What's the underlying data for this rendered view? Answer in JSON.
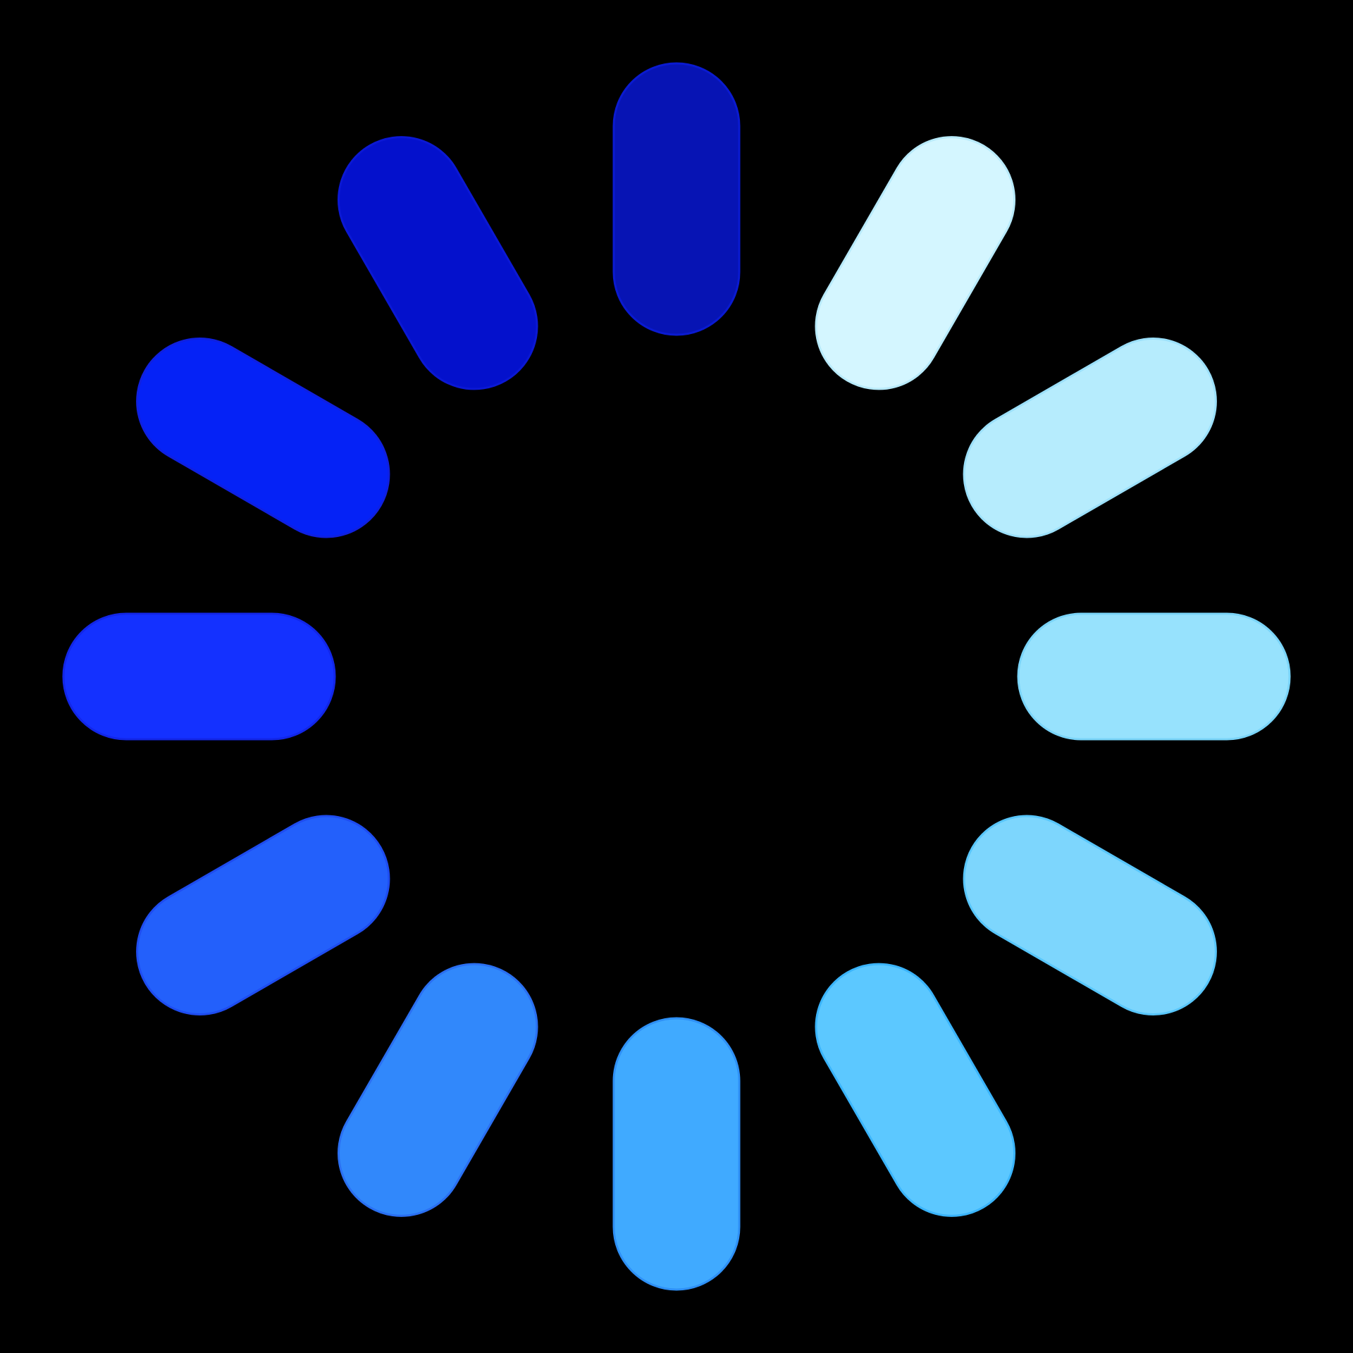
{
  "spinner": {
    "icon": "loading-spinner-icon",
    "background": "#000000",
    "spokes": [
      {
        "angle": 0,
        "fill_from": "#0714b4",
        "fill_to": "#050a9e",
        "stroke": "#0a1ad0"
      },
      {
        "angle": 30,
        "fill_from": "#d4f6ff",
        "fill_to": "#c4f0fb",
        "stroke": "#b8eafa"
      },
      {
        "angle": 60,
        "fill_from": "#b6ecfd",
        "fill_to": "#a6e6fb",
        "stroke": "#9ce0fa"
      },
      {
        "angle": 90,
        "fill_from": "#97e2fd",
        "fill_to": "#86dafb",
        "stroke": "#7ad4f8"
      },
      {
        "angle": 120,
        "fill_from": "#7dd6fd",
        "fill_to": "#5ccaff",
        "stroke": "#58c6fb"
      },
      {
        "angle": 150,
        "fill_from": "#5cc8ff",
        "fill_to": "#42bcff",
        "stroke": "#3ab4fb"
      },
      {
        "angle": 180,
        "fill_from": "#40aaff",
        "fill_to": "#3596fb",
        "stroke": "#2e90f6"
      },
      {
        "angle": 210,
        "fill_from": "#3188fb",
        "fill_to": "#2b74f8",
        "stroke": "#2a6ff2"
      },
      {
        "angle": 240,
        "fill_from": "#2360fb",
        "fill_to": "#1f4ffb",
        "stroke": "#1e4cf0"
      },
      {
        "angle": 270,
        "fill_from": "#1431ff",
        "fill_to": "#0c22fb",
        "stroke": "#1226e8"
      },
      {
        "angle": 300,
        "fill_from": "#0522f6",
        "fill_to": "#0314d8",
        "stroke": "#0f20e0"
      },
      {
        "angle": 330,
        "fill_from": "#0411cc",
        "fill_to": "#0510c8",
        "stroke": "#0b18d4"
      }
    ]
  }
}
